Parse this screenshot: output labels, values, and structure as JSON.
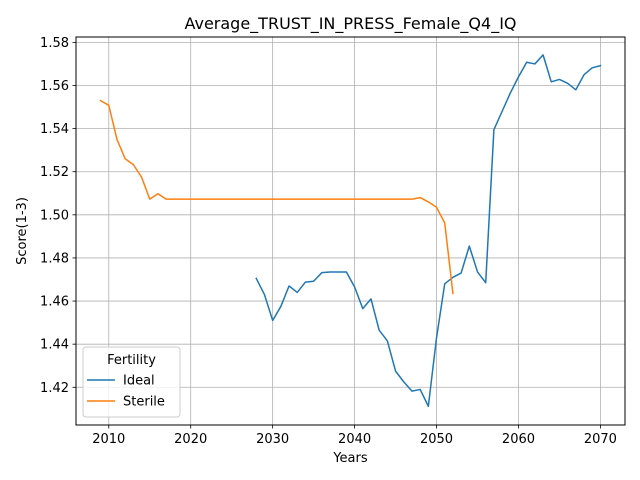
{
  "chart_data": {
    "type": "line",
    "title": "Average_TRUST_IN_PRESS_Female_Q4_IQ",
    "xlabel": "Years",
    "ylabel": "Score(1-3)",
    "xlim": [
      2006,
      2073
    ],
    "ylim": [
      1.4025,
      1.5825
    ],
    "xticks": [
      2010,
      2020,
      2030,
      2040,
      2050,
      2060,
      2070
    ],
    "yticks": [
      1.42,
      1.44,
      1.46,
      1.48,
      1.5,
      1.52,
      1.54,
      1.56,
      1.58
    ],
    "grid": true,
    "legend": {
      "title": "Fertility",
      "placement": "lower-left"
    },
    "series": [
      {
        "name": "Ideal",
        "color": "#1f77b4",
        "x": [
          2028,
          2029,
          2030,
          2031,
          2032,
          2033,
          2034,
          2035,
          2036,
          2037,
          2038,
          2039,
          2040,
          2041,
          2042,
          2043,
          2044,
          2045,
          2046,
          2047,
          2048,
          2049,
          2050,
          2051,
          2052,
          2053,
          2054,
          2055,
          2056,
          2057,
          2058,
          2059,
          2060,
          2061,
          2062,
          2063,
          2064,
          2065,
          2066,
          2067,
          2068,
          2069,
          2070
        ],
        "y": [
          1.4705,
          1.463,
          1.451,
          1.4575,
          1.467,
          1.464,
          1.4688,
          1.4692,
          1.4732,
          1.4735,
          1.4735,
          1.4735,
          1.4665,
          1.4565,
          1.461,
          1.4465,
          1.4415,
          1.4275,
          1.4225,
          1.4182,
          1.419,
          1.4112,
          1.443,
          1.468,
          1.471,
          1.473,
          1.4855,
          1.4735,
          1.4685,
          1.5395,
          1.548,
          1.5565,
          1.564,
          1.5708,
          1.57,
          1.5742,
          1.5617,
          1.5628,
          1.561,
          1.558,
          1.565,
          1.5682,
          1.5692
        ]
      },
      {
        "name": "Sterile",
        "color": "#ff7f0e",
        "x": [
          2009,
          2010,
          2011,
          2012,
          2013,
          2014,
          2015,
          2016,
          2017,
          2018,
          2019,
          2020,
          2025,
          2030,
          2035,
          2040,
          2045,
          2047,
          2048,
          2049,
          2050,
          2051,
          2052
        ],
        "y": [
          1.553,
          1.5508,
          1.535,
          1.526,
          1.5233,
          1.5175,
          1.5073,
          1.5098,
          1.5073,
          1.5073,
          1.5073,
          1.5073,
          1.5073,
          1.5073,
          1.5073,
          1.5073,
          1.5073,
          1.5073,
          1.508,
          1.506,
          1.5035,
          1.4962,
          1.4635
        ]
      }
    ]
  }
}
